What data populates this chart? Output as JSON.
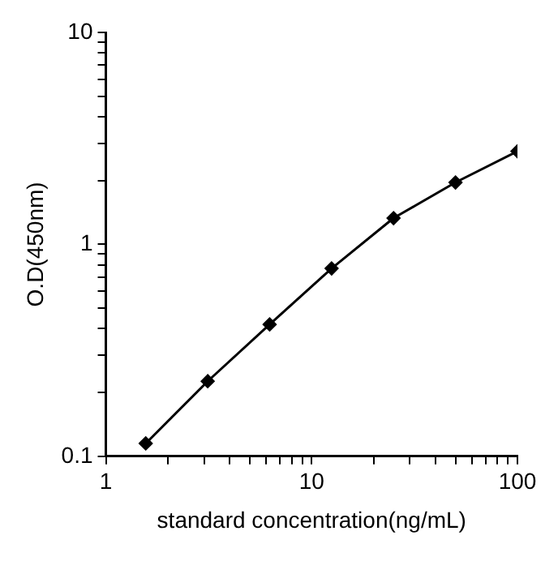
{
  "chart_data": {
    "type": "line",
    "xlabel": "standard concentration(ng/mL)",
    "ylabel": "O.D(450nm)",
    "log": "xy",
    "grid": false,
    "legend": false,
    "marker": "diamond",
    "line_style": "solid",
    "xlim": [
      1,
      100
    ],
    "ylim": [
      0.1,
      10
    ],
    "xticks": [
      1,
      {
        "value": 2,
        "label": null
      },
      {
        "value": 3,
        "label": null
      },
      {
        "value": 4,
        "label": null
      },
      {
        "value": 5,
        "label": null
      },
      {
        "value": 6,
        "label": null
      },
      {
        "value": 7,
        "label": null
      },
      {
        "value": 8,
        "label": null
      },
      {
        "value": 9,
        "label": null
      },
      10,
      {
        "value": 20,
        "label": null
      },
      {
        "value": 30,
        "label": null
      },
      {
        "value": 40,
        "label": null
      },
      {
        "value": 50,
        "label": null
      },
      {
        "value": 60,
        "label": null
      },
      {
        "value": 70,
        "label": null
      },
      {
        "value": 80,
        "label": null
      },
      {
        "value": 90,
        "label": null
      },
      100
    ],
    "yticks": [
      0.1,
      {
        "value": 0.2,
        "label": null
      },
      {
        "value": 0.3,
        "label": null
      },
      {
        "value": 0.4,
        "label": null
      },
      {
        "value": 0.5,
        "label": null
      },
      {
        "value": 0.6,
        "label": null
      },
      {
        "value": 0.7,
        "label": null
      },
      {
        "value": 0.8,
        "label": null
      },
      {
        "value": 0.9,
        "label": null
      },
      1,
      {
        "value": 2,
        "label": null
      },
      {
        "value": 3,
        "label": null
      },
      {
        "value": 4,
        "label": null
      },
      {
        "value": 5,
        "label": null
      },
      {
        "value": 6,
        "label": null
      },
      {
        "value": 7,
        "label": null
      },
      {
        "value": 8,
        "label": null
      },
      {
        "value": 9,
        "label": null
      },
      10
    ],
    "series": [
      {
        "color": "#000000",
        "x": [
          1.5625,
          3.125,
          6.25,
          12.5,
          25,
          50,
          100
        ],
        "values": [
          0.115,
          0.226,
          0.419,
          0.77,
          1.33,
          1.96,
          2.75
        ]
      }
    ]
  }
}
